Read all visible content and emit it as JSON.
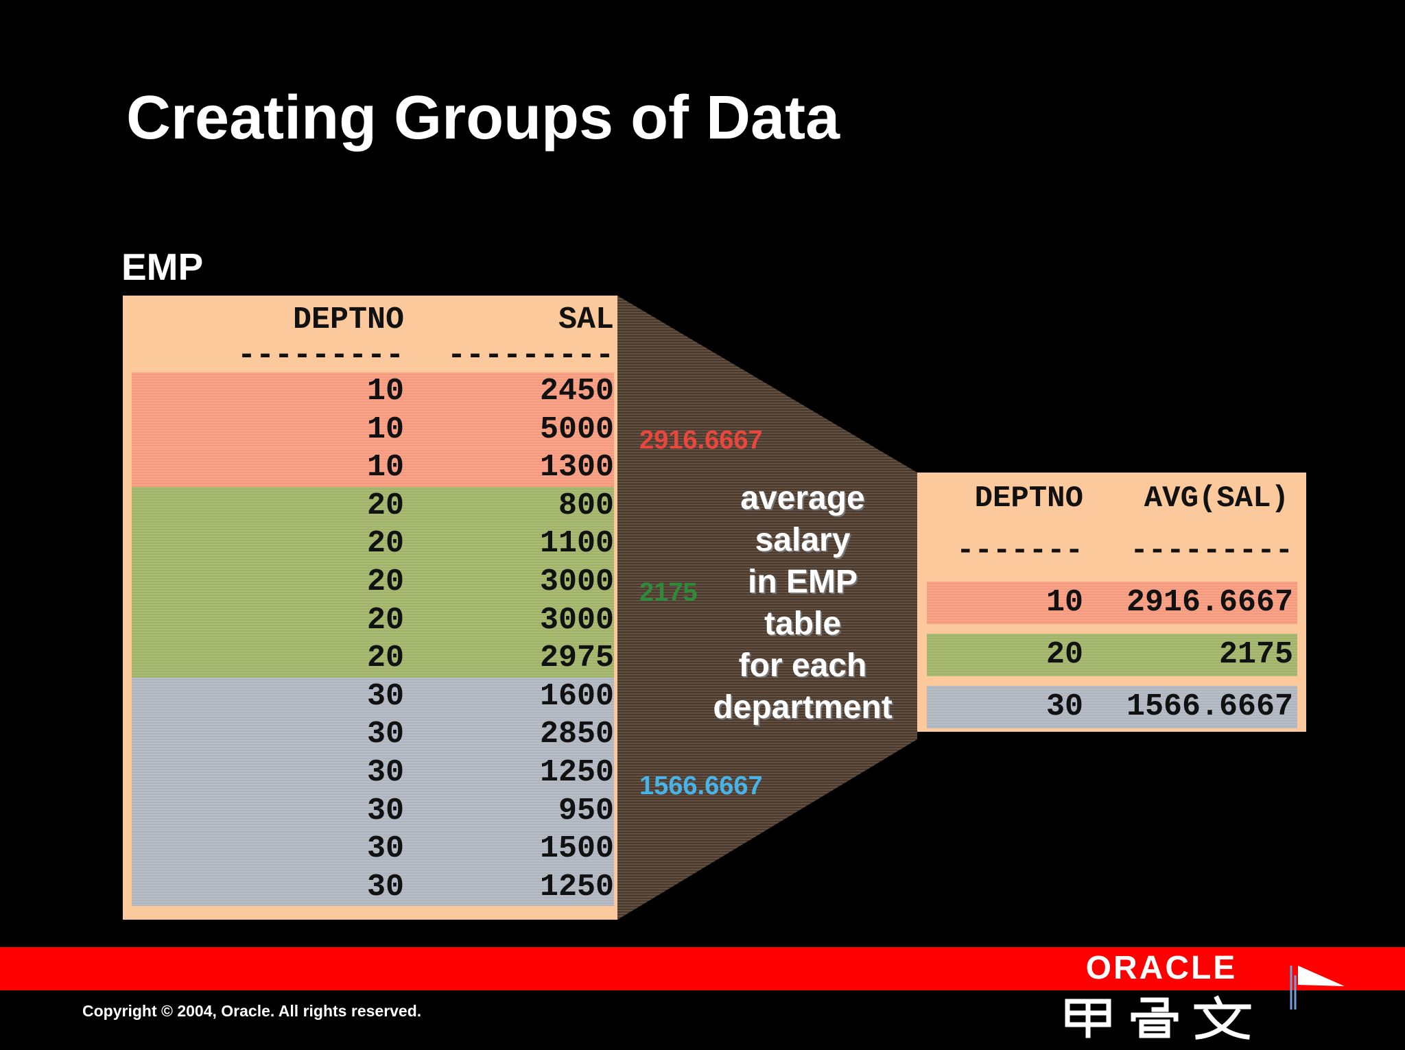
{
  "slide": {
    "title": "Creating Groups of Data",
    "table_label": "EMP"
  },
  "emp_table": {
    "headers": [
      "DEPTNO",
      "SAL"
    ],
    "dashes": [
      "---------",
      "---------"
    ],
    "rows": [
      {
        "deptno": "10",
        "sal": "2450"
      },
      {
        "deptno": "10",
        "sal": "5000"
      },
      {
        "deptno": "10",
        "sal": "1300"
      },
      {
        "deptno": "20",
        "sal": "800"
      },
      {
        "deptno": "20",
        "sal": "1100"
      },
      {
        "deptno": "20",
        "sal": "3000"
      },
      {
        "deptno": "20",
        "sal": "3000"
      },
      {
        "deptno": "20",
        "sal": "2975"
      },
      {
        "deptno": "30",
        "sal": "1600"
      },
      {
        "deptno": "30",
        "sal": "2850"
      },
      {
        "deptno": "30",
        "sal": "1250"
      },
      {
        "deptno": "30",
        "sal": "950"
      },
      {
        "deptno": "30",
        "sal": "1500"
      },
      {
        "deptno": "30",
        "sal": "1250"
      }
    ]
  },
  "group_averages": {
    "dept10": "2916.6667",
    "dept20": "2175",
    "dept30": "1566.6667"
  },
  "funnel_text": [
    "average",
    "salary",
    "in EMP",
    "table",
    "for each",
    "department"
  ],
  "result_table": {
    "headers": [
      "DEPTNO",
      "AVG(SAL)"
    ],
    "dashes": [
      "-------",
      "---------"
    ],
    "rows": [
      {
        "deptno": "10",
        "avg": "2916.6667"
      },
      {
        "deptno": "20",
        "avg": "2175"
      },
      {
        "deptno": "30",
        "avg": "1566.6667"
      }
    ]
  },
  "footer": {
    "copyright": "Copyright © 2004, Oracle.  All rights reserved.",
    "logo_text": "ORACLE",
    "logo_subtext": "甲骨文"
  },
  "colors": {
    "background": "#000000",
    "table_bg": "#fcc99c",
    "group10": "#fa9e82",
    "group20": "#a5b86c",
    "group30": "#b4bac4",
    "funnel": "#4a3a2e",
    "footer_bar": "#fe0000",
    "avg10_label": "#e8473e",
    "avg20_label": "#2f8a3a",
    "avg30_label": "#49b3e8"
  }
}
